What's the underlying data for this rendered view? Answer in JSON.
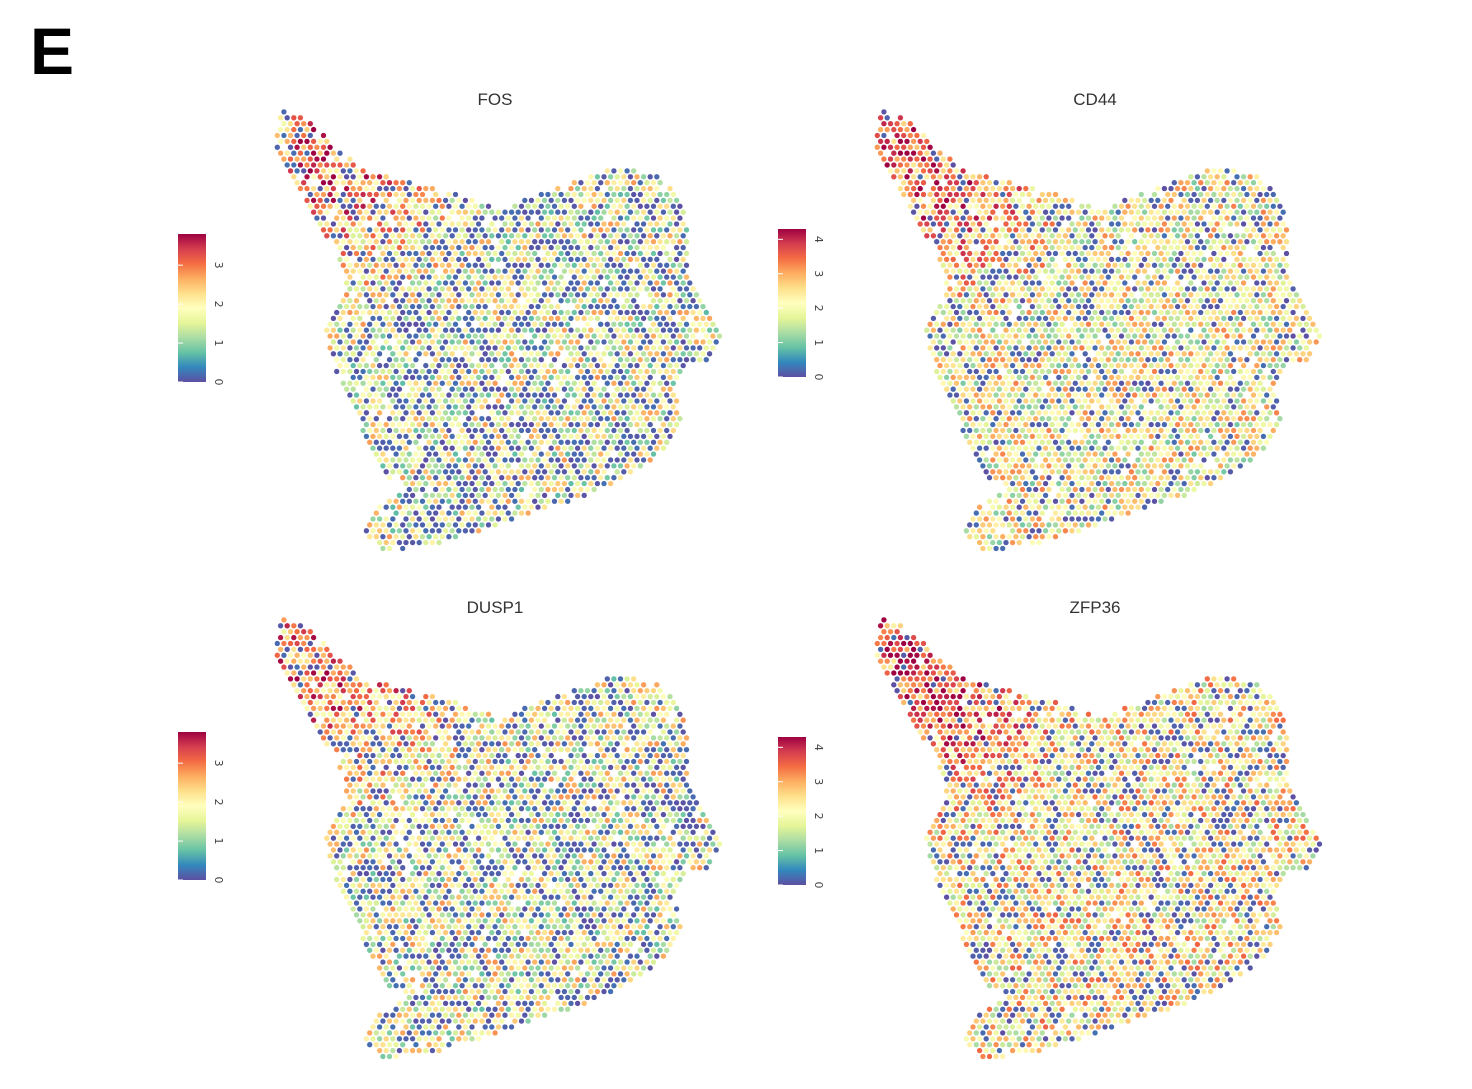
{
  "figure": {
    "panel_label": "E"
  },
  "colormap": {
    "name": "Spectral (reversed)",
    "stops": [
      "#5e4fa2",
      "#3288bd",
      "#66c2a5",
      "#abdda4",
      "#e6f598",
      "#ffffbf",
      "#fee08b",
      "#fdae61",
      "#f46d43",
      "#d53e4f",
      "#9e0142"
    ]
  },
  "chart_data": [
    {
      "type": "heatmap",
      "title": "FOS",
      "xlabel": "",
      "ylabel": "",
      "legend": {
        "placement": "left",
        "orientation": "vertical",
        "ticks": [
          "0",
          "1",
          "2",
          "3"
        ],
        "range": [
          0,
          3.8
        ]
      },
      "distribution": {
        "low_fraction": 0.34,
        "mean_level": 0.46,
        "hotspot_region": "upper-left tip and top edge"
      }
    },
    {
      "type": "heatmap",
      "title": "CD44",
      "xlabel": "",
      "ylabel": "",
      "legend": {
        "placement": "left",
        "orientation": "vertical",
        "ticks": [
          "0",
          "1",
          "2",
          "3",
          "4"
        ],
        "range": [
          0,
          4.3
        ]
      },
      "distribution": {
        "low_fraction": 0.2,
        "mean_level": 0.5,
        "hotspot_region": "upper-left tip and right edge"
      }
    },
    {
      "type": "heatmap",
      "title": "DUSP1",
      "xlabel": "",
      "ylabel": "",
      "legend": {
        "placement": "left",
        "orientation": "vertical",
        "ticks": [
          "0",
          "1",
          "2",
          "3"
        ],
        "range": [
          0,
          3.8
        ]
      },
      "distribution": {
        "low_fraction": 0.3,
        "mean_level": 0.47,
        "hotspot_region": "upper-left tip"
      }
    },
    {
      "type": "heatmap",
      "title": "ZFP36",
      "xlabel": "",
      "ylabel": "",
      "legend": {
        "placement": "left",
        "orientation": "vertical",
        "ticks": [
          "0",
          "1",
          "2",
          "3",
          "4"
        ],
        "range": [
          0,
          4.3
        ]
      },
      "distribution": {
        "low_fraction": 0.22,
        "mean_level": 0.55,
        "hotspot_region": "upper-left arm and center"
      }
    }
  ]
}
